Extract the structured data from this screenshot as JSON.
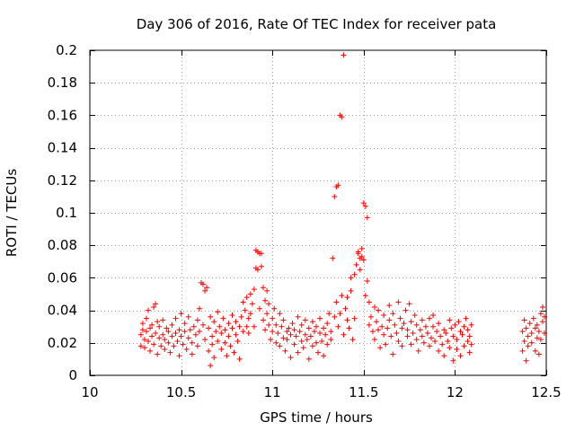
{
  "chart_data": {
    "type": "scatter",
    "title": "Day 306 of 2016, Rate Of TEC Index for receiver pata",
    "xlabel": "GPS time / hours",
    "ylabel": "ROTI / TECUs",
    "xlim": [
      10,
      12.5
    ],
    "ylim": [
      0,
      0.2
    ],
    "grid": true,
    "marker": "+",
    "color": "#ff0000",
    "xticks": [
      {
        "value": 10,
        "label": "10"
      },
      {
        "value": 10.5,
        "label": "10.5"
      },
      {
        "value": 11,
        "label": "11"
      },
      {
        "value": 11.5,
        "label": "11.5"
      },
      {
        "value": 12,
        "label": "12"
      },
      {
        "value": 12.5,
        "label": "12.5"
      }
    ],
    "yticks": [
      {
        "value": 0,
        "label": "0"
      },
      {
        "value": 0.02,
        "label": "0.02"
      },
      {
        "value": 0.04,
        "label": "0.04"
      },
      {
        "value": 0.06,
        "label": "0.06"
      },
      {
        "value": 0.08,
        "label": "0.08"
      },
      {
        "value": 0.1,
        "label": "0.1"
      },
      {
        "value": 0.12,
        "label": "0.12"
      },
      {
        "value": 0.14,
        "label": "0.14"
      },
      {
        "value": 0.16,
        "label": "0.16"
      },
      {
        "value": 0.18,
        "label": "0.18"
      },
      {
        "value": 0.2,
        "label": "0.2"
      }
    ],
    "points": [
      [
        10.28,
        0.025
      ],
      [
        10.28,
        0.018
      ],
      [
        10.29,
        0.032
      ],
      [
        10.29,
        0.028
      ],
      [
        10.3,
        0.022
      ],
      [
        10.3,
        0.017
      ],
      [
        10.31,
        0.027
      ],
      [
        10.31,
        0.035
      ],
      [
        10.32,
        0.04
      ],
      [
        10.32,
        0.021
      ],
      [
        10.33,
        0.015
      ],
      [
        10.33,
        0.029
      ],
      [
        10.34,
        0.024
      ],
      [
        10.34,
        0.031
      ],
      [
        10.35,
        0.042
      ],
      [
        10.35,
        0.019
      ],
      [
        10.36,
        0.044
      ],
      [
        10.36,
        0.026
      ],
      [
        10.37,
        0.013
      ],
      [
        10.37,
        0.033
      ],
      [
        10.38,
        0.023
      ],
      [
        10.38,
        0.03
      ],
      [
        10.39,
        0.018
      ],
      [
        10.4,
        0.025
      ],
      [
        10.4,
        0.034
      ],
      [
        10.41,
        0.016
      ],
      [
        10.41,
        0.022
      ],
      [
        10.42,
        0.029
      ],
      [
        10.43,
        0.02
      ],
      [
        10.43,
        0.027
      ],
      [
        10.44,
        0.014
      ],
      [
        10.45,
        0.031
      ],
      [
        10.45,
        0.024
      ],
      [
        10.46,
        0.018
      ],
      [
        10.47,
        0.035
      ],
      [
        10.47,
        0.026
      ],
      [
        10.48,
        0.021
      ],
      [
        10.49,
        0.012
      ],
      [
        10.49,
        0.028
      ],
      [
        10.5,
        0.024
      ],
      [
        10.5,
        0.038
      ],
      [
        10.51,
        0.019
      ],
      [
        10.52,
        0.027
      ],
      [
        10.52,
        0.032
      ],
      [
        10.53,
        0.016
      ],
      [
        10.54,
        0.023
      ],
      [
        10.54,
        0.036
      ],
      [
        10.55,
        0.028
      ],
      [
        10.56,
        0.02
      ],
      [
        10.56,
        0.013
      ],
      [
        10.57,
        0.03
      ],
      [
        10.58,
        0.025
      ],
      [
        10.59,
        0.034
      ],
      [
        10.59,
        0.018
      ],
      [
        10.6,
        0.041
      ],
      [
        10.6,
        0.027
      ],
      [
        10.61,
        0.057
      ],
      [
        10.62,
        0.056
      ],
      [
        10.62,
        0.031
      ],
      [
        10.63,
        0.052
      ],
      [
        10.63,
        0.022
      ],
      [
        10.64,
        0.054
      ],
      [
        10.65,
        0.015
      ],
      [
        10.65,
        0.029
      ],
      [
        10.66,
        0.036
      ],
      [
        10.66,
        0.006
      ],
      [
        10.67,
        0.024
      ],
      [
        10.67,
        0.019
      ],
      [
        10.68,
        0.033
      ],
      [
        10.68,
        0.011
      ],
      [
        10.69,
        0.027
      ],
      [
        10.7,
        0.039
      ],
      [
        10.7,
        0.021
      ],
      [
        10.71,
        0.03
      ],
      [
        10.72,
        0.016
      ],
      [
        10.72,
        0.026
      ],
      [
        10.73,
        0.035
      ],
      [
        10.74,
        0.02
      ],
      [
        10.74,
        0.028
      ],
      [
        10.75,
        0.012
      ],
      [
        10.76,
        0.032
      ],
      [
        10.76,
        0.024
      ],
      [
        10.77,
        0.018
      ],
      [
        10.78,
        0.037
      ],
      [
        10.78,
        0.029
      ],
      [
        10.79,
        0.014
      ],
      [
        10.8,
        0.025
      ],
      [
        10.8,
        0.033
      ],
      [
        10.81,
        0.021
      ],
      [
        10.82,
        0.01
      ],
      [
        10.82,
        0.03
      ],
      [
        10.83,
        0.036
      ],
      [
        10.84,
        0.027
      ],
      [
        10.84,
        0.045
      ],
      [
        10.85,
        0.04
      ],
      [
        10.86,
        0.03
      ],
      [
        10.86,
        0.048
      ],
      [
        10.87,
        0.035
      ],
      [
        10.87,
        0.026
      ],
      [
        10.88,
        0.05
      ],
      [
        10.88,
        0.038
      ],
      [
        10.89,
        0.044
      ],
      [
        10.9,
        0.03
      ],
      [
        10.9,
        0.053
      ],
      [
        10.91,
        0.077
      ],
      [
        10.91,
        0.066
      ],
      [
        10.92,
        0.076
      ],
      [
        10.92,
        0.065
      ],
      [
        10.93,
        0.075
      ],
      [
        10.93,
        0.041
      ],
      [
        10.94,
        0.067
      ],
      [
        10.94,
        0.075
      ],
      [
        10.95,
        0.054
      ],
      [
        10.95,
        0.034
      ],
      [
        10.96,
        0.046
      ],
      [
        10.96,
        0.028
      ],
      [
        10.97,
        0.052
      ],
      [
        10.97,
        0.038
      ],
      [
        10.98,
        0.044
      ],
      [
        10.98,
        0.031
      ],
      [
        10.99,
        0.022
      ],
      [
        11.0,
        0.035
      ],
      [
        11.0,
        0.027
      ],
      [
        11.01,
        0.041
      ],
      [
        11.02,
        0.02
      ],
      [
        11.02,
        0.031
      ],
      [
        11.03,
        0.026
      ],
      [
        11.04,
        0.038
      ],
      [
        11.04,
        0.018
      ],
      [
        11.05,
        0.03
      ],
      [
        11.06,
        0.023
      ],
      [
        11.06,
        0.034
      ],
      [
        11.07,
        0.015
      ],
      [
        11.08,
        0.027
      ],
      [
        11.08,
        0.022
      ],
      [
        11.09,
        0.029
      ],
      [
        11.1,
        0.011
      ],
      [
        11.1,
        0.025
      ],
      [
        11.11,
        0.032
      ],
      [
        11.12,
        0.019
      ],
      [
        11.12,
        0.028
      ],
      [
        11.13,
        0.024
      ],
      [
        11.14,
        0.036
      ],
      [
        11.14,
        0.014
      ],
      [
        11.15,
        0.027
      ],
      [
        11.16,
        0.021
      ],
      [
        11.16,
        0.031
      ],
      [
        11.17,
        0.017
      ],
      [
        11.18,
        0.025
      ],
      [
        11.18,
        0.034
      ],
      [
        11.19,
        0.022
      ],
      [
        11.2,
        0.01
      ],
      [
        11.2,
        0.029
      ],
      [
        11.21,
        0.024
      ],
      [
        11.22,
        0.033
      ],
      [
        11.22,
        0.018
      ],
      [
        11.23,
        0.027
      ],
      [
        11.24,
        0.02
      ],
      [
        11.24,
        0.03
      ],
      [
        11.25,
        0.014
      ],
      [
        11.26,
        0.026
      ],
      [
        11.26,
        0.035
      ],
      [
        11.27,
        0.021
      ],
      [
        11.28,
        0.029
      ],
      [
        11.28,
        0.012
      ],
      [
        11.29,
        0.025
      ],
      [
        11.3,
        0.032
      ],
      [
        11.3,
        0.019
      ],
      [
        11.31,
        0.038
      ],
      [
        11.32,
        0.027
      ],
      [
        11.32,
        0.022
      ],
      [
        11.33,
        0.072
      ],
      [
        11.34,
        0.036
      ],
      [
        11.34,
        0.11
      ],
      [
        11.35,
        0.116
      ],
      [
        11.35,
        0.045
      ],
      [
        11.36,
        0.117
      ],
      [
        11.36,
        0.03
      ],
      [
        11.37,
        0.16
      ],
      [
        11.37,
        0.038
      ],
      [
        11.38,
        0.159
      ],
      [
        11.38,
        0.049
      ],
      [
        11.39,
        0.197
      ],
      [
        11.39,
        0.025
      ],
      [
        11.4,
        0.041
      ],
      [
        11.41,
        0.034
      ],
      [
        11.41,
        0.048
      ],
      [
        11.42,
        0.029
      ],
      [
        11.43,
        0.06
      ],
      [
        11.43,
        0.052
      ],
      [
        11.44,
        0.022
      ],
      [
        11.45,
        0.035
      ],
      [
        11.45,
        0.062
      ],
      [
        11.46,
        0.068
      ],
      [
        11.47,
        0.075
      ],
      [
        11.47,
        0.076
      ],
      [
        11.48,
        0.072
      ],
      [
        11.48,
        0.065
      ],
      [
        11.49,
        0.078
      ],
      [
        11.49,
        0.073
      ],
      [
        11.5,
        0.106
      ],
      [
        11.5,
        0.071
      ],
      [
        11.51,
        0.104
      ],
      [
        11.51,
        0.049
      ],
      [
        11.52,
        0.097
      ],
      [
        11.52,
        0.058
      ],
      [
        11.53,
        0.045
      ],
      [
        11.53,
        0.031
      ],
      [
        11.54,
        0.036
      ],
      [
        11.55,
        0.027
      ],
      [
        11.56,
        0.042
      ],
      [
        11.56,
        0.022
      ],
      [
        11.57,
        0.033
      ],
      [
        11.58,
        0.028
      ],
      [
        11.58,
        0.04
      ],
      [
        11.59,
        0.017
      ],
      [
        11.6,
        0.03
      ],
      [
        11.61,
        0.025
      ],
      [
        11.61,
        0.037
      ],
      [
        11.62,
        0.019
      ],
      [
        11.63,
        0.029
      ],
      [
        11.64,
        0.043
      ],
      [
        11.64,
        0.034
      ],
      [
        11.65,
        0.024
      ],
      [
        11.66,
        0.038
      ],
      [
        11.66,
        0.013
      ],
      [
        11.67,
        0.031
      ],
      [
        11.68,
        0.026
      ],
      [
        11.69,
        0.045
      ],
      [
        11.69,
        0.021
      ],
      [
        11.7,
        0.035
      ],
      [
        11.71,
        0.029
      ],
      [
        11.71,
        0.018
      ],
      [
        11.72,
        0.032
      ],
      [
        11.73,
        0.04
      ],
      [
        11.74,
        0.024
      ],
      [
        11.74,
        0.028
      ],
      [
        11.75,
        0.044
      ],
      [
        11.76,
        0.019
      ],
      [
        11.76,
        0.033
      ],
      [
        11.77,
        0.026
      ],
      [
        11.78,
        0.037
      ],
      [
        11.79,
        0.022
      ],
      [
        11.79,
        0.031
      ],
      [
        11.8,
        0.015
      ],
      [
        11.81,
        0.028
      ],
      [
        11.82,
        0.034
      ],
      [
        11.82,
        0.024
      ],
      [
        11.83,
        0.02
      ],
      [
        11.84,
        0.03
      ],
      [
        11.85,
        0.026
      ],
      [
        11.86,
        0.035
      ],
      [
        11.86,
        0.018
      ],
      [
        11.87,
        0.023
      ],
      [
        11.88,
        0.03
      ],
      [
        11.88,
        0.037
      ],
      [
        11.89,
        0.021
      ],
      [
        11.9,
        0.027
      ],
      [
        11.91,
        0.015
      ],
      [
        11.91,
        0.032
      ],
      [
        11.92,
        0.024
      ],
      [
        11.93,
        0.019
      ],
      [
        11.94,
        0.028
      ],
      [
        11.94,
        0.012
      ],
      [
        11.95,
        0.026
      ],
      [
        11.96,
        0.021
      ],
      [
        11.97,
        0.034
      ],
      [
        11.97,
        0.017
      ],
      [
        11.98,
        0.029
      ],
      [
        11.99,
        0.024
      ],
      [
        11.99,
        0.009
      ],
      [
        12.0,
        0.031
      ],
      [
        12.01,
        0.022
      ],
      [
        12.01,
        0.016
      ],
      [
        12.02,
        0.033
      ],
      [
        12.03,
        0.027
      ],
      [
        12.03,
        0.012
      ],
      [
        12.04,
        0.025
      ],
      [
        12.05,
        0.03
      ],
      [
        12.05,
        0.018
      ],
      [
        12.06,
        0.035
      ],
      [
        12.07,
        0.021
      ],
      [
        12.07,
        0.028
      ],
      [
        12.08,
        0.014
      ],
      [
        12.08,
        0.024
      ],
      [
        12.09,
        0.031
      ],
      [
        12.09,
        0.019
      ],
      [
        12.37,
        0.015
      ],
      [
        12.37,
        0.027
      ],
      [
        12.38,
        0.034
      ],
      [
        12.38,
        0.021
      ],
      [
        12.39,
        0.009
      ],
      [
        12.39,
        0.029
      ],
      [
        12.4,
        0.024
      ],
      [
        12.4,
        0.018
      ],
      [
        12.41,
        0.032
      ],
      [
        12.42,
        0.026
      ],
      [
        12.42,
        0.02
      ],
      [
        12.43,
        0.035
      ],
      [
        12.44,
        0.029
      ],
      [
        12.44,
        0.015
      ],
      [
        12.45,
        0.023
      ],
      [
        12.45,
        0.031
      ],
      [
        12.46,
        0.027
      ],
      [
        12.46,
        0.013
      ],
      [
        12.47,
        0.038
      ],
      [
        12.47,
        0.022
      ],
      [
        12.48,
        0.033
      ],
      [
        12.48,
        0.042
      ],
      [
        12.49,
        0.026
      ],
      [
        12.49,
        0.036
      ]
    ]
  }
}
